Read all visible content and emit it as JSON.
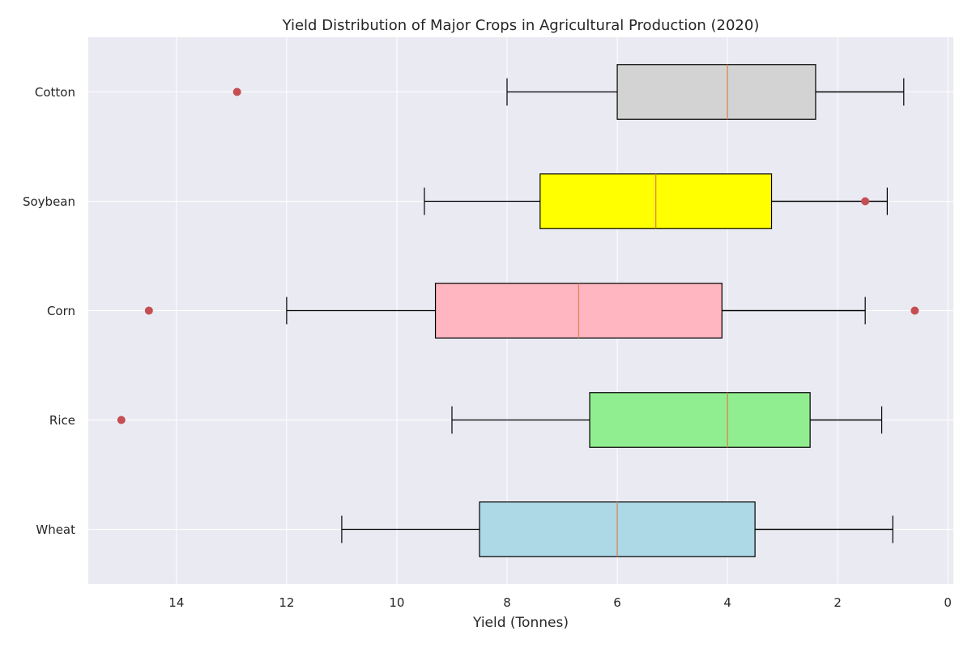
{
  "chart_data": {
    "type": "boxplot",
    "orientation": "horizontal",
    "title": "Yield Distribution of Major Crops in Agricultural Production (2020)",
    "xlabel": "Yield (Tonnes)",
    "ylabel": "",
    "xlim": [
      15.6,
      -0.1
    ],
    "x_inverted": true,
    "x_ticks": [
      14,
      12,
      10,
      8,
      6,
      4,
      2,
      0
    ],
    "grid": true,
    "categories": [
      "Wheat",
      "Rice",
      "Corn",
      "Soybean",
      "Cotton"
    ],
    "boxes": [
      {
        "category": "Wheat",
        "whisker_low": 1.0,
        "q1": 3.5,
        "median": 6.0,
        "q3": 8.5,
        "whisker_high": 11.0,
        "outliers": []
      },
      {
        "category": "Rice",
        "whisker_low": 1.2,
        "q1": 2.5,
        "median": 4.0,
        "q3": 6.5,
        "whisker_high": 9.0,
        "outliers": [
          15.0
        ]
      },
      {
        "category": "Corn",
        "whisker_low": 1.5,
        "q1": 4.1,
        "median": 6.7,
        "q3": 9.3,
        "whisker_high": 12.0,
        "outliers": [
          14.5,
          0.6
        ]
      },
      {
        "category": "Soybean",
        "whisker_low": 1.1,
        "q1": 3.2,
        "median": 5.3,
        "q3": 7.4,
        "whisker_high": 9.5,
        "outliers": [
          1.5
        ]
      },
      {
        "category": "Cotton",
        "whisker_low": 0.8,
        "q1": 2.4,
        "median": 4.0,
        "q3": 6.0,
        "whisker_high": 8.0,
        "outliers": [
          12.9
        ]
      }
    ],
    "colors": {
      "background": "#eaeaf2",
      "grid": "#ffffff",
      "median": "#dd8452",
      "outlier": "#c44e52",
      "box_edge": "#000000",
      "fills": {
        "Wheat": "#add8e6",
        "Rice": "#90ee90",
        "Corn": "#ffb6c1",
        "Soybean": "#ffff00",
        "Cotton": "#d3d3d3"
      }
    }
  }
}
